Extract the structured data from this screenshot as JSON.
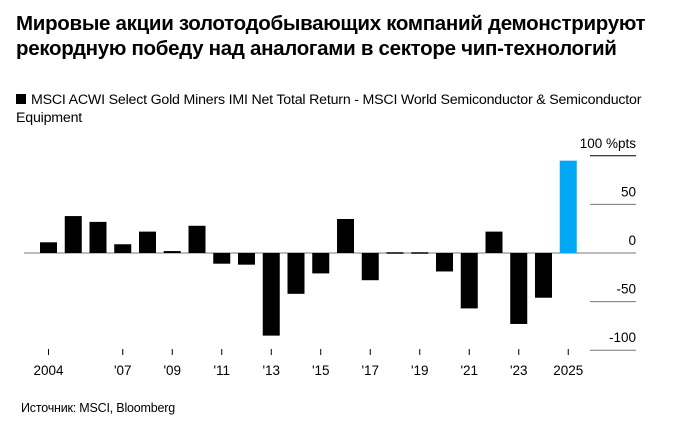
{
  "title": "Мировые акции золотодобывающих компаний демонстрируют рекордную победу над аналогами в секторе чип-технологий",
  "legend": {
    "label": "MSCI ACWI Select Gold Miners IMI Net Total Return - MSCI World Semiconductor & Semiconductor Equipment",
    "color": "#000000"
  },
  "source": "Источник: MSCI, Bloomberg",
  "colors": {
    "default_bar": "#000000",
    "highlight_bar": "#00a8f5",
    "axis": "#7a7a7a"
  },
  "chart_data": {
    "type": "bar",
    "title": "Мировые акции золотодобывающих компаний демонстрируют рекордную победу над аналогами в секторе чип-технологий",
    "xlabel": "",
    "ylabel": "%pts",
    "ylim": [
      -100,
      100
    ],
    "yticks": [
      100,
      50,
      0,
      -50,
      -100
    ],
    "ytick_labels": [
      "100 %pts",
      "50",
      "0",
      "-50",
      "-100"
    ],
    "categories": [
      "2004",
      "2005",
      "2006",
      "2007",
      "2008",
      "2009",
      "2010",
      "2011",
      "2012",
      "2013",
      "2014",
      "2015",
      "2016",
      "2017",
      "2018",
      "2019",
      "2020",
      "2021",
      "2022",
      "2023",
      "2024",
      "2025"
    ],
    "xtick_labels": [
      {
        "category": "2004",
        "label": "2004"
      },
      {
        "category": "2007",
        "label": "'07"
      },
      {
        "category": "2009",
        "label": "'09"
      },
      {
        "category": "2011",
        "label": "'11"
      },
      {
        "category": "2013",
        "label": "'13"
      },
      {
        "category": "2015",
        "label": "'15"
      },
      {
        "category": "2017",
        "label": "'17"
      },
      {
        "category": "2019",
        "label": "'19"
      },
      {
        "category": "2021",
        "label": "'21"
      },
      {
        "category": "2023",
        "label": "'23"
      },
      {
        "category": "2025",
        "label": "2025"
      }
    ],
    "series": [
      {
        "name": "MSCI ACWI Select Gold Miners IMI Net Total Return - MSCI World Semiconductor & Semiconductor Equipment",
        "values": [
          11,
          38,
          32,
          9,
          22,
          2,
          28,
          -11,
          -12,
          -85,
          -42,
          -21,
          35,
          -28,
          1,
          -1,
          -19,
          -57,
          22,
          -73,
          -46,
          95
        ]
      }
    ],
    "highlight": "2025",
    "grid": false,
    "legend_position": "top-left"
  }
}
